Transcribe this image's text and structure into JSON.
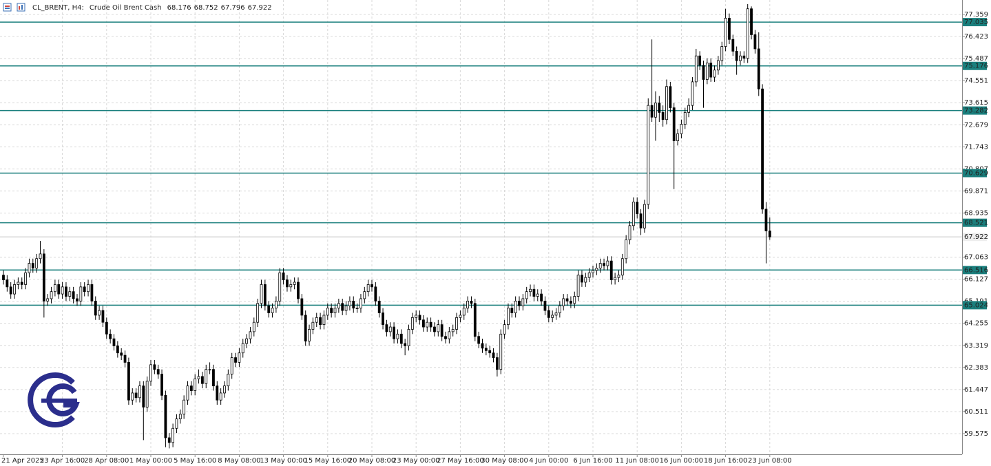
{
  "chart_data": {
    "type": "candlestick",
    "symbol": "CL_BRENT, H4:",
    "description": "Crude Oil Brent Cash",
    "categories": [
      "21 Apr 2025",
      null,
      null,
      null,
      null,
      null,
      null,
      null,
      null,
      null,
      null,
      null,
      null,
      null,
      null,
      null,
      "23 Apr 16:00",
      null,
      null,
      null,
      null,
      null,
      null,
      null,
      null,
      null,
      null,
      null,
      "28 Apr 08:00",
      null,
      null,
      null,
      null,
      null,
      null,
      null,
      null,
      null,
      null,
      null,
      "1 May 00:00",
      null,
      null,
      null,
      null,
      null,
      null,
      null,
      null,
      null,
      null,
      null,
      "5 May 16:00",
      null,
      null,
      null,
      null,
      null,
      null,
      null,
      null,
      null,
      null,
      null,
      "8 May 08:00",
      null,
      null,
      null,
      null,
      null,
      null,
      null,
      null,
      null,
      null,
      null,
      "13 May 00:00",
      null,
      null,
      null,
      null,
      null,
      null,
      null,
      null,
      null,
      null,
      null,
      "15 May 16:00",
      null,
      null,
      null,
      null,
      null,
      null,
      null,
      null,
      null,
      null,
      null,
      "20 May 08:00",
      null,
      null,
      null,
      null,
      null,
      null,
      null,
      null,
      null,
      null,
      null,
      "23 May 00:00",
      null,
      null,
      null,
      null,
      null,
      null,
      null,
      null,
      null,
      null,
      null,
      "27 May 16:00",
      null,
      null,
      null,
      null,
      null,
      null,
      null,
      null,
      null,
      null,
      null,
      "30 May 08:00",
      null,
      null,
      null,
      null,
      null,
      null,
      null,
      null,
      null,
      null,
      null,
      "4 Jun 00:00",
      null,
      null,
      null,
      null,
      null,
      null,
      null,
      null,
      null,
      null,
      null,
      "6 Jun 16:00",
      null,
      null,
      null,
      null,
      null,
      null,
      null,
      null,
      null,
      null,
      null,
      "11 Jun 08:00",
      null,
      null,
      null,
      null,
      null,
      null,
      null,
      null,
      null,
      null,
      null,
      "16 Jun 00:00",
      null,
      null,
      null,
      null,
      null,
      null,
      null,
      null,
      null,
      null,
      null,
      "18 Jun 16:00",
      null,
      null,
      null,
      null,
      null,
      null,
      null,
      null,
      null,
      null,
      null,
      "23 Jun 08:00"
    ],
    "open": [
      66.3,
      66.1,
      65.8,
      65.5,
      65.9,
      66.0,
      65.9,
      66.4,
      66.8,
      66.6,
      67.0,
      67.2,
      65.2,
      65.3,
      65.6,
      65.9,
      65.5,
      65.8,
      65.4,
      65.6,
      65.3,
      65.2,
      65.8,
      65.6,
      65.9,
      65.2,
      64.6,
      64.8,
      64.3,
      63.8,
      63.6,
      63.3,
      63.0,
      62.9,
      62.6,
      61.0,
      61.3,
      61.1,
      61.6,
      60.7,
      61.8,
      62.5,
      62.3,
      62.1,
      61.2,
      59.4,
      59.2,
      59.8,
      60.2,
      60.4,
      61.0,
      61.6,
      61.4,
      61.9,
      62.0,
      61.7,
      62.3,
      62.3,
      61.6,
      61.0,
      61.3,
      61.6,
      62.1,
      62.8,
      62.6,
      63.0,
      63.4,
      63.6,
      63.9,
      64.3,
      65.1,
      65.9,
      65.0,
      64.7,
      64.9,
      65.2,
      66.4,
      66.1,
      65.8,
      65.9,
      66.0,
      65.3,
      64.6,
      63.5,
      64.0,
      64.3,
      64.5,
      64.2,
      64.6,
      64.9,
      64.7,
      64.9,
      65.1,
      64.8,
      65.0,
      65.2,
      64.9,
      64.9,
      65.3,
      65.6,
      65.9,
      65.8,
      65.2,
      64.7,
      64.2,
      63.9,
      64.1,
      63.6,
      63.8,
      63.4,
      63.3,
      64.0,
      64.5,
      64.6,
      64.4,
      64.1,
      64.3,
      64.1,
      63.9,
      64.2,
      63.7,
      63.6,
      63.9,
      64.0,
      64.5,
      64.6,
      64.9,
      65.2,
      65.1,
      63.7,
      63.4,
      63.2,
      63.1,
      63.0,
      62.8,
      62.3,
      63.8,
      64.2,
      64.9,
      64.7,
      65.2,
      65.0,
      65.3,
      65.6,
      65.7,
      65.4,
      65.5,
      65.2,
      64.8,
      64.5,
      64.6,
      64.7,
      65.0,
      65.3,
      65.2,
      65.1,
      65.4,
      66.3,
      66.0,
      66.2,
      66.4,
      66.5,
      66.6,
      66.8,
      66.7,
      66.9,
      66.1,
      66.2,
      66.3,
      67.0,
      67.8,
      68.4,
      69.4,
      68.9,
      68.3,
      69.3,
      73.5,
      73.0,
      73.6,
      73.2,
      72.9,
      74.3,
      73.4,
      72.0,
      72.3,
      72.7,
      73.2,
      73.5,
      74.5,
      75.6,
      75.2,
      74.6,
      75.3,
      74.7,
      75.0,
      75.4,
      76.0,
      77.2,
      76.3,
      75.8,
      75.4,
      75.6,
      75.5,
      77.6,
      76.5,
      75.9,
      74.2,
      69.1,
      68.176
    ],
    "high": [
      66.5,
      66.3,
      66.0,
      66.1,
      66.2,
      66.2,
      66.6,
      67.0,
      67.0,
      67.2,
      67.75,
      67.4,
      65.5,
      65.8,
      66.1,
      66.1,
      66.0,
      66.0,
      65.8,
      65.8,
      65.5,
      66.0,
      66.0,
      66.1,
      66.1,
      65.4,
      65.0,
      65.0,
      64.5,
      64.0,
      63.8,
      63.5,
      63.2,
      63.1,
      62.8,
      61.5,
      61.5,
      61.8,
      61.8,
      62.0,
      62.7,
      62.7,
      62.5,
      62.3,
      61.4,
      59.6,
      60.0,
      60.4,
      60.6,
      61.2,
      61.8,
      61.8,
      62.1,
      62.3,
      62.2,
      62.5,
      62.6,
      62.5,
      61.8,
      61.5,
      61.8,
      62.3,
      63.0,
      63.0,
      63.2,
      63.6,
      63.8,
      64.1,
      64.5,
      65.3,
      66.1,
      66.1,
      65.2,
      65.1,
      65.4,
      66.6,
      66.6,
      66.3,
      66.1,
      66.2,
      66.2,
      65.5,
      64.8,
      64.2,
      64.5,
      64.7,
      64.7,
      64.8,
      65.1,
      65.1,
      65.1,
      65.3,
      65.3,
      65.2,
      65.4,
      65.4,
      65.1,
      65.5,
      65.8,
      66.1,
      66.1,
      66.0,
      65.4,
      64.9,
      64.4,
      64.3,
      64.3,
      64.0,
      64.0,
      63.6,
      64.2,
      64.7,
      64.8,
      64.8,
      64.6,
      64.5,
      64.5,
      64.3,
      64.4,
      64.4,
      63.9,
      64.1,
      64.2,
      64.7,
      64.8,
      65.1,
      65.4,
      65.4,
      65.3,
      63.9,
      63.6,
      63.4,
      63.3,
      63.2,
      63.0,
      64.0,
      64.4,
      65.1,
      65.1,
      65.4,
      65.4,
      65.5,
      65.8,
      65.9,
      65.9,
      65.7,
      65.7,
      65.4,
      65.0,
      64.8,
      64.9,
      65.2,
      65.5,
      65.5,
      65.4,
      65.6,
      66.5,
      66.5,
      66.4,
      66.6,
      66.7,
      66.8,
      67.0,
      67.0,
      67.1,
      67.1,
      66.4,
      66.5,
      67.2,
      68.0,
      68.6,
      69.6,
      69.6,
      69.1,
      69.5,
      73.8,
      76.3,
      74.1,
      73.9,
      73.5,
      74.6,
      74.5,
      73.6,
      72.5,
      72.9,
      73.4,
      73.8,
      74.7,
      75.9,
      75.8,
      75.4,
      75.5,
      75.5,
      75.2,
      75.6,
      76.2,
      77.6,
      77.4,
      76.5,
      76.0,
      75.8,
      75.8,
      77.8,
      77.7,
      76.7,
      76.6,
      74.4,
      69.4,
      68.752
    ],
    "low": [
      65.9,
      65.6,
      65.3,
      65.3,
      65.7,
      65.7,
      65.7,
      66.2,
      66.4,
      66.4,
      66.8,
      64.5,
      65.0,
      65.1,
      65.4,
      65.3,
      65.3,
      65.2,
      65.2,
      65.1,
      65.0,
      65.0,
      65.4,
      65.4,
      65.0,
      64.4,
      64.4,
      64.1,
      63.6,
      63.4,
      63.1,
      62.8,
      62.7,
      62.4,
      60.8,
      60.8,
      60.9,
      60.9,
      59.3,
      60.5,
      61.6,
      62.1,
      61.9,
      61.0,
      59.0,
      58.95,
      59.0,
      59.6,
      60.0,
      60.2,
      60.8,
      61.2,
      61.2,
      61.7,
      61.5,
      61.5,
      62.1,
      61.4,
      60.8,
      60.8,
      61.1,
      61.4,
      61.9,
      62.4,
      62.4,
      62.8,
      63.2,
      63.4,
      63.7,
      64.1,
      64.9,
      64.8,
      64.5,
      64.5,
      64.7,
      65.0,
      65.9,
      65.6,
      65.6,
      65.7,
      65.1,
      64.4,
      63.3,
      63.3,
      63.8,
      64.1,
      64.0,
      64.0,
      64.4,
      64.5,
      64.5,
      64.7,
      64.6,
      64.6,
      64.8,
      64.7,
      64.7,
      64.7,
      65.1,
      65.4,
      65.6,
      65.0,
      64.5,
      64.0,
      63.7,
      63.7,
      63.4,
      63.4,
      63.2,
      62.9,
      63.1,
      63.8,
      64.3,
      64.2,
      63.9,
      63.9,
      63.9,
      63.7,
      63.7,
      63.5,
      63.4,
      63.4,
      63.7,
      63.8,
      64.3,
      64.4,
      64.7,
      64.9,
      63.5,
      63.2,
      63.0,
      62.9,
      62.8,
      62.6,
      62.0,
      62.1,
      63.6,
      64.0,
      64.5,
      64.5,
      64.8,
      64.8,
      65.1,
      65.4,
      65.2,
      65.2,
      65.0,
      64.6,
      64.3,
      64.3,
      64.4,
      64.5,
      64.8,
      65.0,
      64.9,
      64.9,
      65.2,
      65.8,
      65.8,
      66.0,
      66.2,
      66.3,
      66.4,
      66.5,
      66.5,
      65.9,
      65.9,
      66.0,
      66.1,
      66.8,
      67.6,
      68.2,
      68.7,
      68.0,
      68.1,
      69.1,
      72.8,
      72.0,
      72.8,
      72.6,
      72.7,
      73.2,
      69.95,
      71.8,
      72.1,
      72.5,
      73.0,
      73.3,
      74.3,
      75.0,
      73.4,
      74.4,
      74.5,
      74.5,
      74.8,
      75.2,
      75.8,
      76.1,
      75.6,
      74.8,
      75.2,
      75.3,
      75.3,
      76.3,
      75.7,
      73.9,
      68.9,
      66.8,
      67.796
    ],
    "close": [
      66.1,
      65.8,
      65.5,
      65.9,
      66.0,
      65.9,
      66.4,
      66.8,
      66.6,
      67.0,
      67.2,
      65.2,
      65.3,
      65.6,
      65.9,
      65.5,
      65.8,
      65.4,
      65.6,
      65.3,
      65.2,
      65.8,
      65.6,
      65.9,
      65.2,
      64.6,
      64.8,
      64.3,
      63.8,
      63.6,
      63.3,
      63.0,
      62.9,
      62.6,
      61.0,
      61.3,
      61.1,
      61.6,
      60.7,
      61.8,
      62.5,
      62.3,
      62.1,
      61.2,
      59.4,
      59.2,
      59.8,
      60.2,
      60.4,
      61.0,
      61.6,
      61.4,
      61.9,
      62.0,
      61.7,
      62.3,
      62.3,
      61.6,
      61.0,
      61.3,
      61.6,
      62.1,
      62.8,
      62.6,
      63.0,
      63.4,
      63.6,
      63.9,
      64.3,
      65.1,
      65.9,
      65.0,
      64.7,
      64.9,
      65.2,
      66.4,
      66.1,
      65.8,
      65.9,
      66.0,
      65.3,
      64.6,
      63.5,
      64.0,
      64.3,
      64.5,
      64.2,
      64.6,
      64.9,
      64.7,
      64.9,
      65.1,
      64.8,
      65.0,
      65.2,
      64.9,
      64.9,
      65.3,
      65.6,
      65.9,
      65.8,
      65.2,
      64.7,
      64.2,
      63.9,
      64.1,
      63.6,
      63.8,
      63.4,
      63.3,
      64.0,
      64.5,
      64.6,
      64.4,
      64.1,
      64.3,
      64.1,
      63.9,
      64.2,
      63.7,
      63.6,
      63.9,
      64.0,
      64.5,
      64.6,
      64.9,
      65.2,
      65.1,
      63.7,
      63.4,
      63.2,
      63.1,
      63.0,
      62.8,
      62.3,
      63.8,
      64.2,
      64.9,
      64.7,
      65.2,
      65.0,
      65.3,
      65.6,
      65.7,
      65.4,
      65.5,
      65.2,
      64.8,
      64.5,
      64.6,
      64.7,
      65.0,
      65.3,
      65.2,
      65.1,
      65.4,
      66.3,
      66.0,
      66.2,
      66.4,
      66.5,
      66.6,
      66.8,
      66.7,
      66.9,
      66.1,
      66.2,
      66.3,
      67.0,
      67.8,
      68.4,
      69.4,
      68.9,
      68.3,
      69.3,
      73.5,
      73.0,
      73.6,
      73.2,
      72.9,
      74.3,
      73.4,
      72.0,
      72.3,
      72.7,
      73.2,
      73.5,
      74.5,
      75.6,
      75.2,
      74.6,
      75.3,
      74.7,
      75.0,
      75.4,
      76.0,
      77.2,
      76.3,
      75.8,
      75.4,
      75.6,
      75.5,
      77.6,
      76.5,
      75.9,
      74.2,
      69.1,
      68.176,
      67.922
    ],
    "levels": [
      77.035,
      75.176,
      73.282,
      70.629,
      68.521,
      66.516,
      65.024
    ],
    "level_color": "#1a7f7d",
    "up_color": "#ffffff",
    "down_color": "#000000",
    "ylim": [
      58.699,
      77.972
    ],
    "yticks": [
      77.359,
      76.423,
      75.487,
      74.551,
      73.615,
      72.679,
      71.743,
      70.807,
      69.871,
      68.935,
      67.063,
      66.127,
      65.191,
      64.255,
      63.319,
      62.383,
      61.447,
      60.511,
      59.575
    ],
    "grid": true
  }
}
